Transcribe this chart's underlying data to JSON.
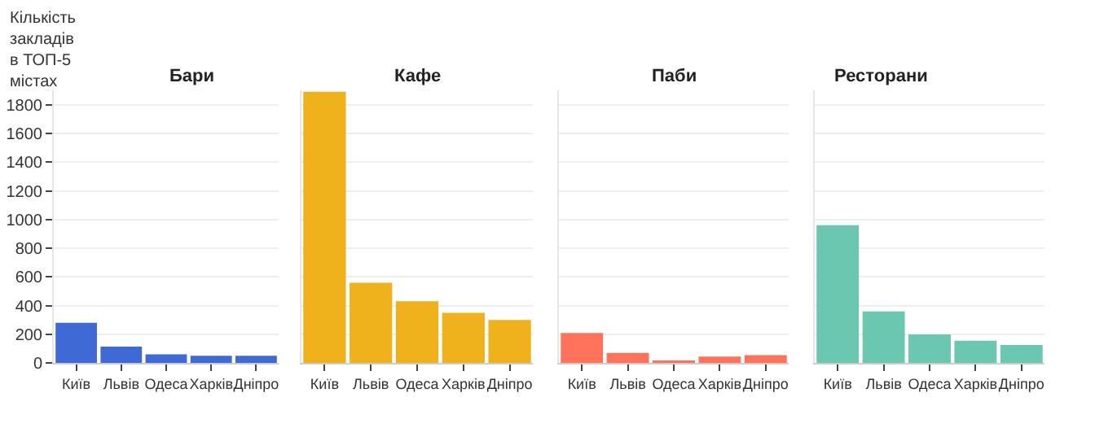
{
  "chart_data": [
    {
      "type": "bar",
      "title": "Бари",
      "ylabel": "Кількість закладів в ТОП-5 містах",
      "categories": [
        "Київ",
        "Львів",
        "Одеса",
        "Харків",
        "Дніпро"
      ],
      "values": [
        280,
        115,
        60,
        50,
        50
      ],
      "color": "#3f69d4",
      "ylim": [
        0,
        1900
      ],
      "yticks": [
        0,
        200,
        400,
        600,
        800,
        1000,
        1200,
        1400,
        1600,
        1800
      ],
      "grid": "y"
    },
    {
      "type": "bar",
      "title": "Кафе",
      "categories": [
        "Київ",
        "Львів",
        "Одеса",
        "Харків",
        "Дніпро"
      ],
      "values": [
        1890,
        560,
        430,
        350,
        300
      ],
      "color": "#efb11c",
      "ylim": [
        0,
        1900
      ],
      "yticks": [
        0,
        200,
        400,
        600,
        800,
        1000,
        1200,
        1400,
        1600,
        1800
      ],
      "grid": "y",
      "tick_labels": "x"
    },
    {
      "type": "bar",
      "title": "Паби",
      "categories": [
        "Київ",
        "Львів",
        "Одеса",
        "Харків",
        "Дніпро"
      ],
      "values": [
        210,
        70,
        10,
        45,
        55
      ],
      "color": "#ff735c",
      "ylim": [
        0,
        1900
      ],
      "yticks": [
        0,
        200,
        400,
        600,
        800,
        1000,
        1200,
        1400,
        1600,
        1800
      ],
      "grid": "y",
      "tick_labels": "x"
    },
    {
      "type": "bar",
      "title": "Ресторани",
      "categories": [
        "Київ",
        "Львів",
        "Одеса",
        "Харків",
        "Дніпро"
      ],
      "values": [
        960,
        360,
        200,
        155,
        125
      ],
      "color": "#6cc7b1",
      "ylim": [
        0,
        1900
      ],
      "yticks": [
        0,
        200,
        400,
        600,
        800,
        1000,
        1200,
        1400,
        1600,
        1800
      ],
      "grid": "y",
      "tick_labels": "x"
    }
  ]
}
